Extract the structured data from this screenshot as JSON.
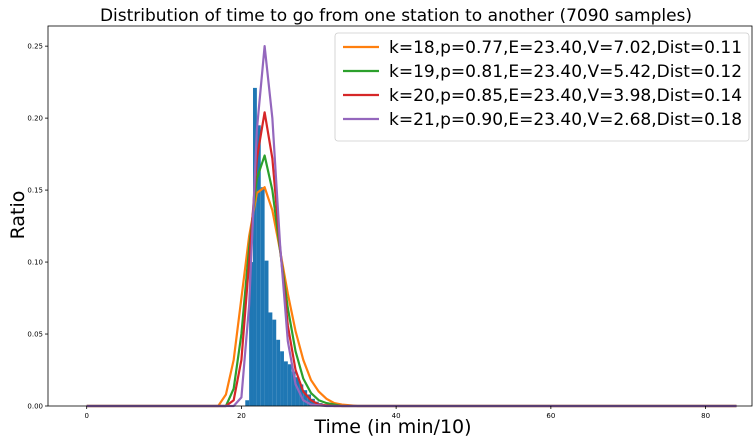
{
  "chart_data": {
    "type": "bar",
    "title": "Distribution of time to go from one station to another (7090 samples)",
    "xlabel": "Time (in min/10)",
    "ylabel": "Ratio",
    "xlim": [
      -5,
      86
    ],
    "ylim": [
      0,
      0.264
    ],
    "x_ticks": [
      0,
      20,
      40,
      60,
      80
    ],
    "y_ticks": [
      0.0,
      0.05,
      0.1,
      0.15,
      0.2,
      0.25
    ],
    "x_tick_labels": [
      "0",
      "20",
      "40",
      "60",
      "80"
    ],
    "y_tick_labels": [
      "0.00",
      "0.05",
      "0.10",
      "0.15",
      "0.20",
      "0.25"
    ],
    "grid": false,
    "legend_position": "top-right",
    "histogram": {
      "color": "#1f77b4",
      "bins": [
        {
          "x0": 20.5,
          "x1": 21.0,
          "value": 0.004
        },
        {
          "x0": 21.0,
          "x1": 21.5,
          "value": 0.1
        },
        {
          "x0": 21.5,
          "x1": 22.0,
          "value": 0.221
        },
        {
          "x0": 22.0,
          "x1": 22.5,
          "value": 0.195
        },
        {
          "x0": 22.5,
          "x1": 23.0,
          "value": 0.152
        },
        {
          "x0": 23.0,
          "x1": 23.5,
          "value": 0.101
        },
        {
          "x0": 23.5,
          "x1": 24.0,
          "value": 0.065
        },
        {
          "x0": 24.0,
          "x1": 24.5,
          "value": 0.06
        },
        {
          "x0": 24.5,
          "x1": 25.0,
          "value": 0.046
        },
        {
          "x0": 25.0,
          "x1": 25.5,
          "value": 0.038
        },
        {
          "x0": 25.5,
          "x1": 26.0,
          "value": 0.031
        },
        {
          "x0": 26.0,
          "x1": 26.5,
          "value": 0.029
        },
        {
          "x0": 26.5,
          "x1": 27.0,
          "value": 0.024
        },
        {
          "x0": 27.0,
          "x1": 27.5,
          "value": 0.02
        },
        {
          "x0": 27.5,
          "x1": 28.0,
          "value": 0.015
        },
        {
          "x0": 28.0,
          "x1": 28.5,
          "value": 0.011
        },
        {
          "x0": 28.5,
          "x1": 29.0,
          "value": 0.008
        },
        {
          "x0": 29.0,
          "x1": 29.5,
          "value": 0.005
        },
        {
          "x0": 29.5,
          "x1": 30.0,
          "value": 0.003
        },
        {
          "x0": 30.0,
          "x1": 30.5,
          "value": 0.002
        },
        {
          "x0": 30.5,
          "x1": 31.0,
          "value": 0.001
        }
      ]
    },
    "series": [
      {
        "name": "k=18,p=0.77,E=23.40,V=7.02,Dist=0.11",
        "color": "#ff7f0e",
        "points": [
          [
            0,
            0
          ],
          [
            17,
            0
          ],
          [
            18,
            0.008
          ],
          [
            19,
            0.032
          ],
          [
            20,
            0.075
          ],
          [
            21,
            0.118
          ],
          [
            22,
            0.148
          ],
          [
            23,
            0.152
          ],
          [
            24,
            0.136
          ],
          [
            25,
            0.108
          ],
          [
            26,
            0.078
          ],
          [
            27,
            0.052
          ],
          [
            28,
            0.032
          ],
          [
            29,
            0.018
          ],
          [
            30,
            0.01
          ],
          [
            31,
            0.005
          ],
          [
            32,
            0.002
          ],
          [
            33,
            0.001
          ],
          [
            35,
            0
          ],
          [
            84,
            0
          ]
        ]
      },
      {
        "name": "k=19,p=0.81,E=23.40,V=5.42,Dist=0.12",
        "color": "#2ca02c",
        "points": [
          [
            0,
            0
          ],
          [
            18,
            0
          ],
          [
            19,
            0.012
          ],
          [
            20,
            0.05
          ],
          [
            21,
            0.11
          ],
          [
            22,
            0.158
          ],
          [
            23,
            0.174
          ],
          [
            24,
            0.15
          ],
          [
            25,
            0.108
          ],
          [
            26,
            0.068
          ],
          [
            27,
            0.038
          ],
          [
            28,
            0.019
          ],
          [
            29,
            0.009
          ],
          [
            30,
            0.004
          ],
          [
            31,
            0.002
          ],
          [
            33,
            0
          ],
          [
            84,
            0
          ]
        ]
      },
      {
        "name": "k=20,p=0.85,E=23.40,V=3.98,Dist=0.14",
        "color": "#d62728",
        "points": [
          [
            0,
            0
          ],
          [
            18,
            0
          ],
          [
            19,
            0.004
          ],
          [
            20,
            0.032
          ],
          [
            21,
            0.1
          ],
          [
            22,
            0.172
          ],
          [
            23,
            0.204
          ],
          [
            24,
            0.172
          ],
          [
            25,
            0.11
          ],
          [
            26,
            0.056
          ],
          [
            27,
            0.025
          ],
          [
            28,
            0.01
          ],
          [
            29,
            0.004
          ],
          [
            30,
            0.001
          ],
          [
            32,
            0
          ],
          [
            84,
            0
          ]
        ]
      },
      {
        "name": "k=21,p=0.90,E=23.40,V=2.68,Dist=0.18",
        "color": "#9467bd",
        "points": [
          [
            0,
            0
          ],
          [
            19,
            0
          ],
          [
            20,
            0.006
          ],
          [
            21,
            0.07
          ],
          [
            22,
            0.192
          ],
          [
            23,
            0.25
          ],
          [
            24,
            0.2
          ],
          [
            25,
            0.112
          ],
          [
            26,
            0.045
          ],
          [
            27,
            0.015
          ],
          [
            28,
            0.004
          ],
          [
            29,
            0.001
          ],
          [
            31,
            0
          ],
          [
            84,
            0
          ]
        ]
      }
    ]
  }
}
